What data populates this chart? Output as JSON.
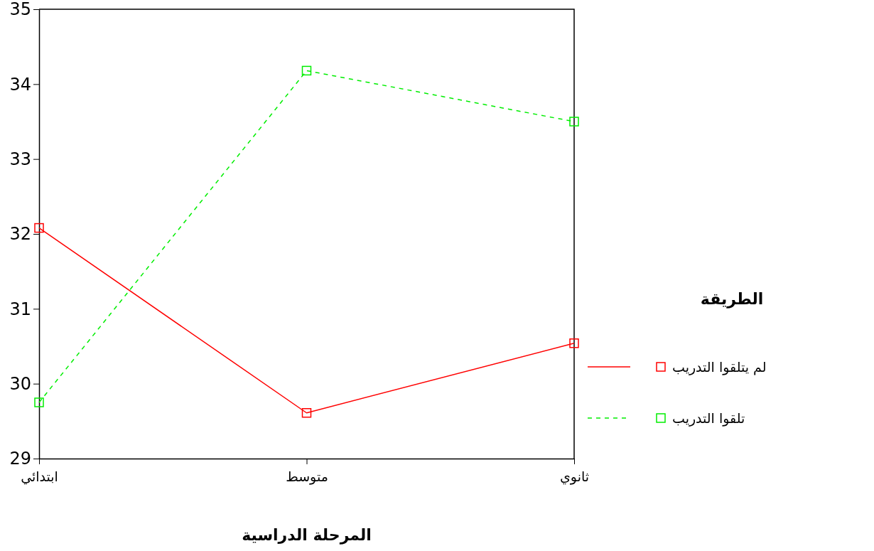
{
  "chart_data": {
    "type": "line",
    "xlabel": "المرحلة الدراسية",
    "legend_title": "الطريقة",
    "categories": [
      "ابتدائي",
      "متوسط",
      "ثانوي"
    ],
    "series": [
      {
        "name": "لم يتلقوا التدريب",
        "color": "#ff0000",
        "values": [
          32.08,
          29.61,
          30.54
        ],
        "line_style": "solid"
      },
      {
        "name": "تلقوا التدريب",
        "color": "#00ee00",
        "values": [
          29.75,
          34.18,
          33.5
        ],
        "line_style": "dashed"
      }
    ],
    "ylim": [
      29,
      35
    ],
    "yticks": [
      29,
      30,
      31,
      32,
      33,
      34,
      35
    ],
    "grid": false,
    "legend": "right",
    "marker": "square"
  }
}
